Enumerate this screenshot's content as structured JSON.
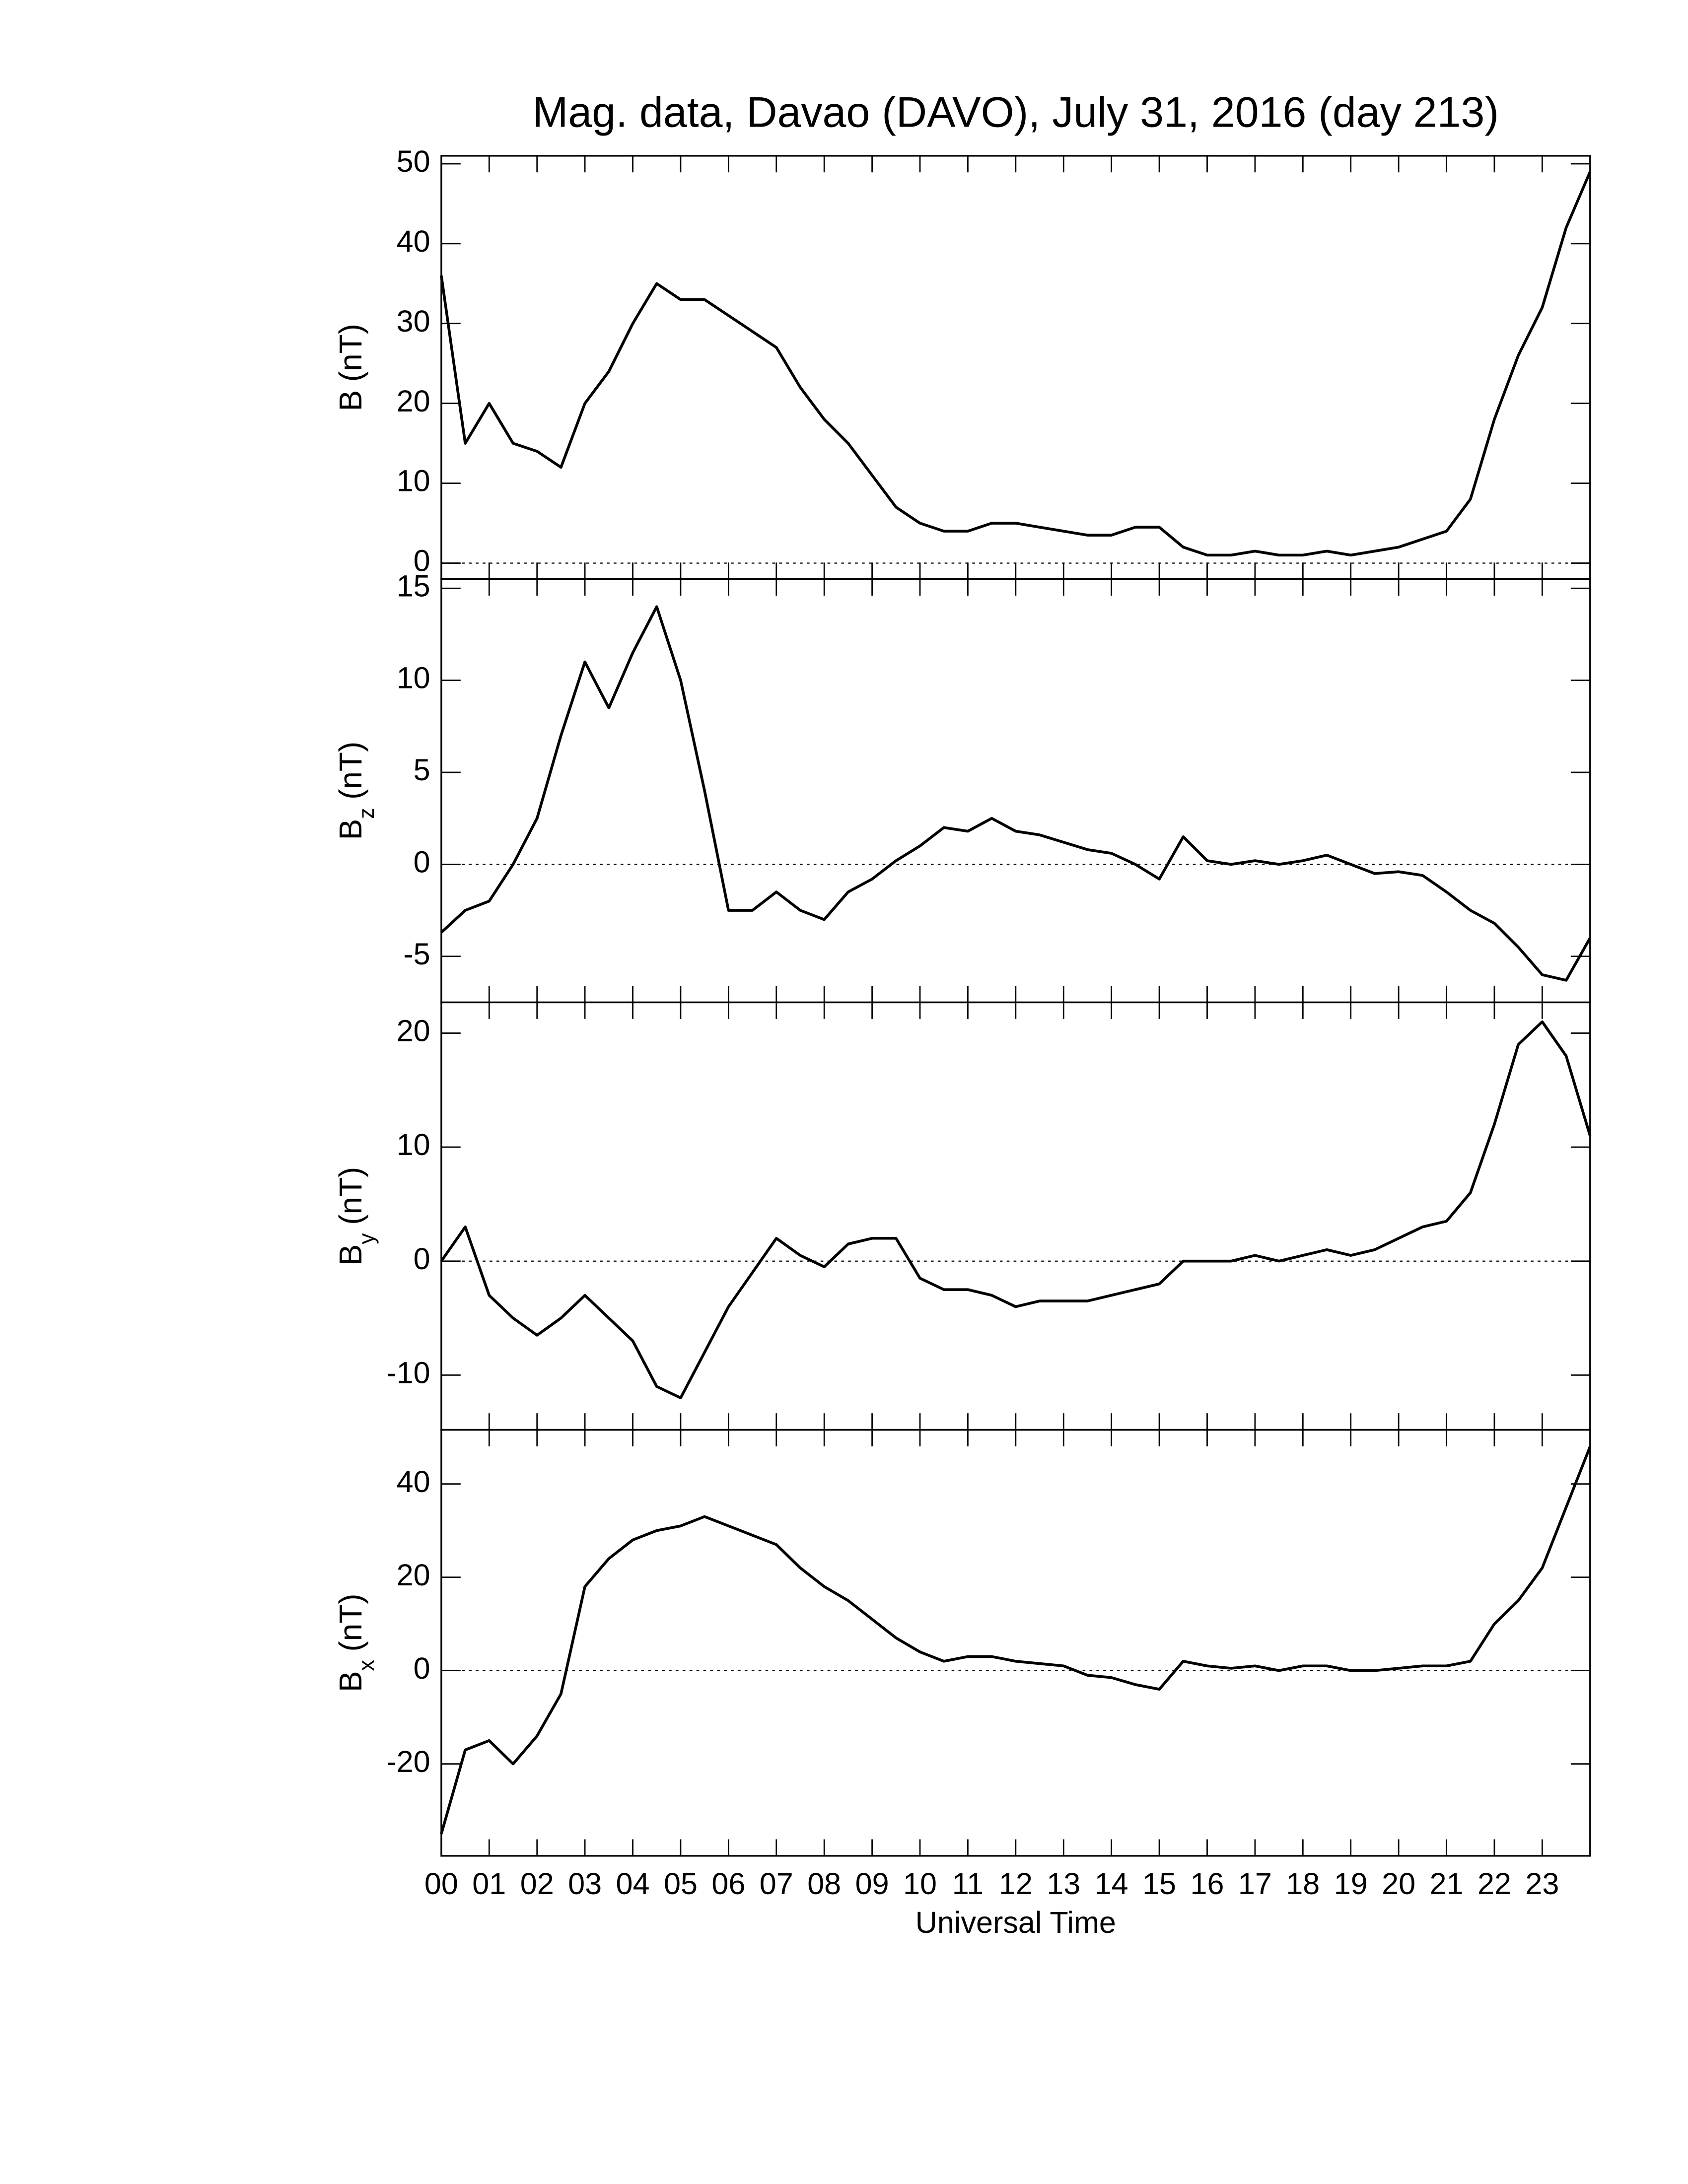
{
  "chart_data": [
    {
      "type": "line",
      "title": "Mag. data, Davao (DAVO), July 31, 2016 (day 213)",
      "ylabel": "B",
      "ylabel_unit": "(nT)",
      "x": [
        0,
        0.5,
        1,
        1.5,
        2,
        2.5,
        3,
        3.5,
        4,
        4.5,
        5,
        5.5,
        6,
        6.5,
        7,
        7.5,
        8,
        8.5,
        9,
        9.5,
        10,
        10.5,
        11,
        11.5,
        12,
        12.5,
        13,
        13.5,
        14,
        14.5,
        15,
        15.5,
        16,
        16.5,
        17,
        17.5,
        18,
        18.5,
        19,
        19.5,
        20,
        20.5,
        21,
        21.5,
        22,
        22.5,
        23,
        23.5,
        24
      ],
      "series": [
        {
          "color": "#000000",
          "values": [
            36,
            15,
            20,
            15,
            14,
            12,
            20,
            24,
            30,
            35,
            33,
            33,
            31,
            29,
            27,
            22,
            18,
            15,
            11,
            7,
            5,
            4,
            4,
            5,
            5,
            4.5,
            4,
            3.5,
            3.5,
            4.5,
            4.5,
            2,
            1,
            1,
            1.5,
            1,
            1,
            1.5,
            1,
            1.5,
            2,
            3,
            4,
            8,
            18,
            26,
            32,
            42,
            49
          ]
        }
      ],
      "xlim": [
        0,
        24
      ],
      "ylim": [
        -2,
        51
      ],
      "yticks": [
        0,
        10,
        20,
        30,
        40,
        50
      ],
      "zero_line": true
    },
    {
      "type": "line",
      "ylabel": "B",
      "ylabel_sub": "z",
      "ylabel_unit": "(nT)",
      "x": [
        0,
        0.5,
        1,
        1.5,
        2,
        2.5,
        3,
        3.5,
        4,
        4.5,
        5,
        5.5,
        6,
        6.5,
        7,
        7.5,
        8,
        8.5,
        9,
        9.5,
        10,
        10.5,
        11,
        11.5,
        12,
        12.5,
        13,
        13.5,
        14,
        14.5,
        15,
        15.5,
        16,
        16.5,
        17,
        17.5,
        18,
        18.5,
        19,
        19.5,
        20,
        20.5,
        21,
        21.5,
        22,
        22.5,
        23,
        23.5,
        24
      ],
      "series": [
        {
          "color": "#000000",
          "values": [
            -3.7,
            -2.5,
            -2,
            0,
            2.5,
            7,
            11,
            8.5,
            11.5,
            14,
            10,
            4,
            -2.5,
            -2.5,
            -1.5,
            -2.5,
            -3,
            -1.5,
            -0.8,
            0.2,
            1,
            2,
            1.8,
            2.5,
            1.8,
            1.6,
            1.2,
            0.8,
            0.6,
            0,
            -0.8,
            1.5,
            0.2,
            0,
            0.2,
            0,
            0.2,
            0.5,
            0,
            -0.5,
            -0.4,
            -0.6,
            -1.5,
            -2.5,
            -3.2,
            -4.5,
            -6,
            -6.3,
            -4
          ]
        }
      ],
      "xlim": [
        0,
        24
      ],
      "ylim": [
        -7.5,
        15.5
      ],
      "yticks": [
        -5,
        0,
        5,
        10,
        15
      ],
      "zero_line": true
    },
    {
      "type": "line",
      "ylabel": "B",
      "ylabel_sub": "y",
      "ylabel_unit": "(nT)",
      "x": [
        0,
        0.5,
        1,
        1.5,
        2,
        2.5,
        3,
        3.5,
        4,
        4.5,
        5,
        5.5,
        6,
        6.5,
        7,
        7.5,
        8,
        8.5,
        9,
        9.5,
        10,
        10.5,
        11,
        11.5,
        12,
        12.5,
        13,
        13.5,
        14,
        14.5,
        15,
        15.5,
        16,
        16.5,
        17,
        17.5,
        18,
        18.5,
        19,
        19.5,
        20,
        20.5,
        21,
        21.5,
        22,
        22.5,
        23,
        23.5,
        24
      ],
      "series": [
        {
          "color": "#000000",
          "values": [
            0,
            3,
            -3,
            -5,
            -6.5,
            -5,
            -3,
            -5,
            -7,
            -11,
            -12,
            -8,
            -4,
            -1,
            2,
            0.5,
            -0.5,
            1.5,
            2,
            2,
            -1.5,
            -2.5,
            -2.5,
            -3,
            -4,
            -3.5,
            -3.5,
            -3.5,
            -3,
            -2.5,
            -2,
            0,
            0,
            0,
            0.5,
            0,
            0.5,
            1,
            0.5,
            1,
            2,
            3,
            3.5,
            6,
            12,
            19,
            21,
            18,
            11
          ]
        }
      ],
      "xlim": [
        0,
        24
      ],
      "ylim": [
        -14.8,
        22.7
      ],
      "yticks": [
        -10,
        0,
        10,
        20
      ],
      "zero_line": true
    },
    {
      "type": "line",
      "ylabel": "B",
      "ylabel_sub": "x",
      "ylabel_unit": "(nT)",
      "xlabel": "Universal Time",
      "x": [
        0,
        0.5,
        1,
        1.5,
        2,
        2.5,
        3,
        3.5,
        4,
        4.5,
        5,
        5.5,
        6,
        6.5,
        7,
        7.5,
        8,
        8.5,
        9,
        9.5,
        10,
        10.5,
        11,
        11.5,
        12,
        12.5,
        13,
        13.5,
        14,
        14.5,
        15,
        15.5,
        16,
        16.5,
        17,
        17.5,
        18,
        18.5,
        19,
        19.5,
        20,
        20.5,
        21,
        21.5,
        22,
        22.5,
        23,
        23.5,
        24
      ],
      "series": [
        {
          "color": "#000000",
          "values": [
            -35,
            -17,
            -15,
            -20,
            -14,
            -5,
            18,
            24,
            28,
            30,
            31,
            33,
            31,
            29,
            27,
            22,
            18,
            15,
            11,
            7,
            4,
            2,
            3,
            3,
            2,
            1.5,
            1,
            -1,
            -1.5,
            -3,
            -4,
            2,
            1,
            0.5,
            1,
            0,
            1,
            1,
            0,
            0,
            0.5,
            1,
            1,
            2,
            10,
            15,
            22,
            35,
            48
          ]
        }
      ],
      "xlim": [
        0,
        24
      ],
      "ylim": [
        -39.7,
        51.6
      ],
      "yticks": [
        -20,
        0,
        20,
        40
      ],
      "zero_line": true,
      "xticks": [
        {
          "value": 0,
          "label": "00"
        },
        {
          "value": 1,
          "label": "01"
        },
        {
          "value": 2,
          "label": "02"
        },
        {
          "value": 3,
          "label": "03"
        },
        {
          "value": 4,
          "label": "04"
        },
        {
          "value": 5,
          "label": "05"
        },
        {
          "value": 6,
          "label": "06"
        },
        {
          "value": 7,
          "label": "07"
        },
        {
          "value": 8,
          "label": "08"
        },
        {
          "value": 9,
          "label": "09"
        },
        {
          "value": 10,
          "label": "10"
        },
        {
          "value": 11,
          "label": "11"
        },
        {
          "value": 12,
          "label": "12"
        },
        {
          "value": 13,
          "label": "13"
        },
        {
          "value": 14,
          "label": "14"
        },
        {
          "value": 15,
          "label": "15"
        },
        {
          "value": 16,
          "label": "16"
        },
        {
          "value": 17,
          "label": "17"
        },
        {
          "value": 18,
          "label": "18"
        },
        {
          "value": 19,
          "label": "19"
        },
        {
          "value": 20,
          "label": "20"
        },
        {
          "value": 21,
          "label": "21"
        },
        {
          "value": 22,
          "label": "22"
        },
        {
          "value": 23,
          "label": "23"
        }
      ]
    }
  ]
}
